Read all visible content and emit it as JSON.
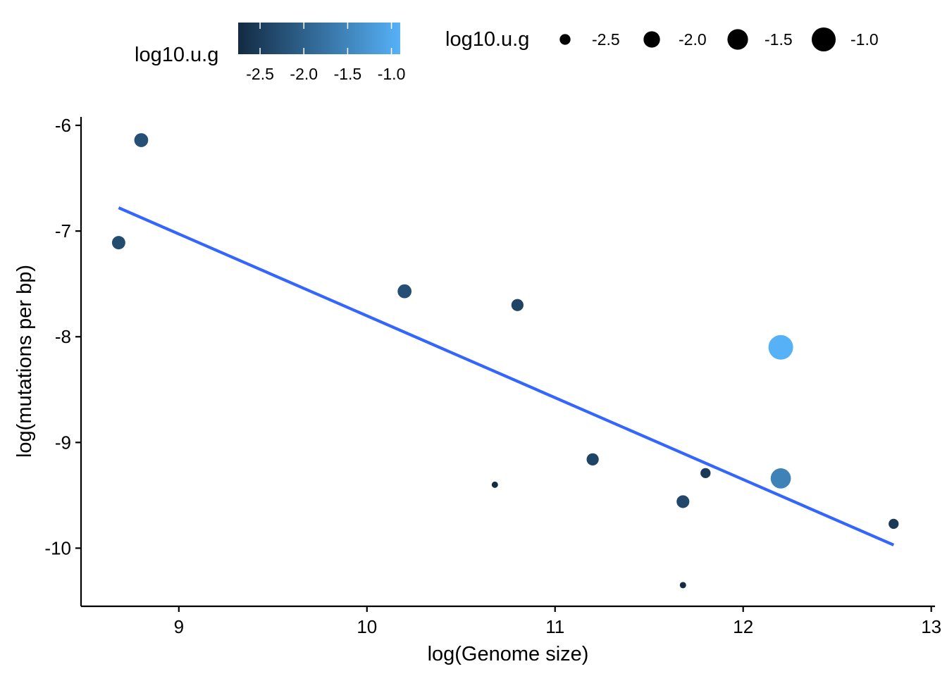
{
  "chart_data": {
    "type": "scatter",
    "title": "",
    "xlabel": "log(Genome size)",
    "ylabel": "log(mutations per bp)",
    "xlim": [
      8.48,
      13.02
    ],
    "ylim": [
      -10.55,
      -5.92
    ],
    "x_ticks": [
      9,
      10,
      11,
      12,
      13
    ],
    "y_ticks": [
      -10,
      -9,
      -8,
      -7,
      -6
    ],
    "x_tick_labels": [
      "9",
      "10",
      "11",
      "12",
      "13"
    ],
    "y_tick_labels": [
      "-10",
      "-9",
      "-8",
      "-7",
      "-6"
    ],
    "grid": false,
    "color_variable": "log10.u.g",
    "size_variable": "log10.u.g",
    "color_scale": {
      "low": "#132B43",
      "high": "#56B1F7",
      "limits": [
        -2.75,
        -0.9
      ]
    },
    "points": [
      {
        "x": 8.68,
        "y": -7.11,
        "u": -2.3
      },
      {
        "x": 8.8,
        "y": -6.14,
        "u": -2.25
      },
      {
        "x": 10.2,
        "y": -7.57,
        "u": -2.25
      },
      {
        "x": 10.68,
        "y": -9.4,
        "u": -2.75
      },
      {
        "x": 10.8,
        "y": -7.7,
        "u": -2.4
      },
      {
        "x": 11.2,
        "y": -9.16,
        "u": -2.4
      },
      {
        "x": 11.68,
        "y": -9.56,
        "u": -2.35
      },
      {
        "x": 11.68,
        "y": -10.35,
        "u": -2.75
      },
      {
        "x": 11.8,
        "y": -9.29,
        "u": -2.55
      },
      {
        "x": 12.2,
        "y": -8.1,
        "u": -0.9
      },
      {
        "x": 12.2,
        "y": -9.34,
        "u": -1.55
      },
      {
        "x": 12.8,
        "y": -9.77,
        "u": -2.55
      }
    ],
    "trend_line": {
      "x": [
        8.68,
        12.8
      ],
      "y": [
        -6.78,
        -9.97
      ]
    },
    "trend_color": "#3366FF",
    "legend_position": "top",
    "legends": {
      "colorbar": {
        "title": "log10.u.g",
        "ticks": [
          -2.5,
          -2.0,
          -1.5,
          -1.0
        ],
        "tick_labels": [
          "-2.5",
          "-2.0",
          "-1.5",
          "-1.0"
        ]
      },
      "size": {
        "title": "log10.u.g",
        "values": [
          -2.5,
          -2.0,
          -1.5,
          -1.0
        ],
        "labels": [
          "-2.5",
          "-2.0",
          "-1.5",
          "-1.0"
        ]
      }
    }
  }
}
